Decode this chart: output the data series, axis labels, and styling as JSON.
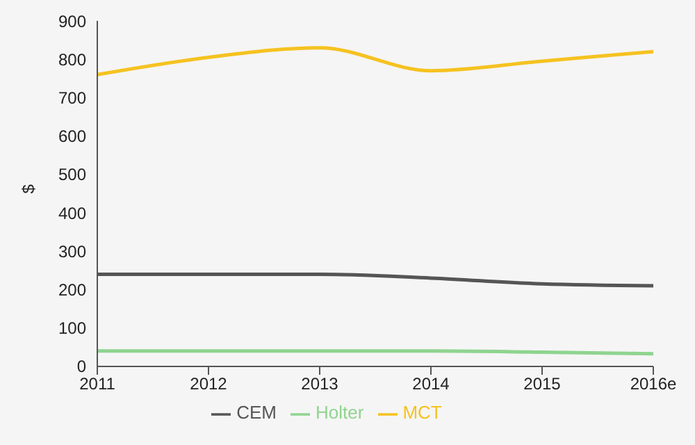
{
  "chart_data": {
    "type": "line",
    "ylabel": "$",
    "categories": [
      "2011",
      "2012",
      "2013",
      "2014",
      "2015",
      "2016e"
    ],
    "series": [
      {
        "name": "MCT",
        "color": "#f5c220",
        "values": [
          760,
          805,
          830,
          770,
          795,
          820
        ]
      },
      {
        "name": "CEM",
        "color": "#555555",
        "values": [
          240,
          240,
          240,
          230,
          215,
          210
        ]
      },
      {
        "name": "Holter",
        "color": "#8fd48f",
        "values": [
          40,
          40,
          40,
          40,
          37,
          33
        ]
      }
    ],
    "ylim": [
      0,
      900
    ],
    "yticks": [
      0,
      100,
      200,
      300,
      400,
      500,
      600,
      700,
      800,
      900
    ],
    "grid": false,
    "legend": "bottom",
    "marker": "none",
    "line_style": "solid"
  }
}
